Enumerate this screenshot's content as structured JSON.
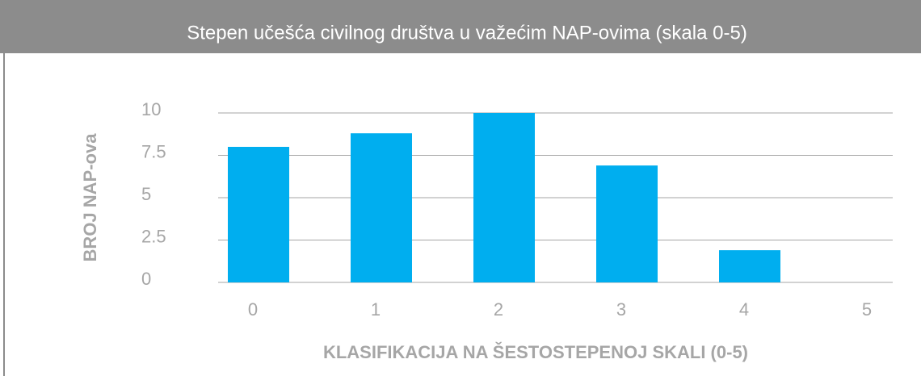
{
  "chart_data": {
    "type": "bar",
    "title": "Stepen učešća civilnog društva u važećim NAP-ovima (skala 0-5)",
    "x_label": "KLASIFIKACIJA NA ŠESTOSTEPENOJ SKALI (0-5)",
    "y_label": "BROJ NAP-ova",
    "categories": [
      "0",
      "1",
      "2",
      "3",
      "4",
      "5"
    ],
    "values": [
      8,
      8.8,
      10,
      6.9,
      1.9,
      0
    ],
    "color": "#00aeef",
    "ylim": [
      0,
      10
    ],
    "yticks": [
      0,
      2.5,
      5,
      7.5,
      10
    ],
    "grid": true
  }
}
